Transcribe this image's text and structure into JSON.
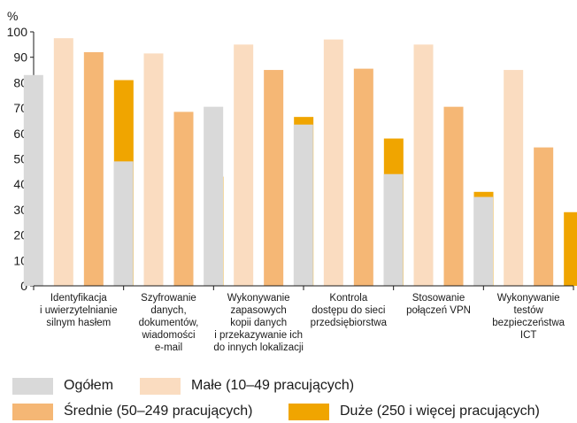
{
  "chart_data": {
    "type": "bar",
    "ylabel": "%",
    "ylim": [
      0,
      100
    ],
    "yticks": [
      0,
      10,
      20,
      30,
      40,
      50,
      60,
      70,
      80,
      90,
      100
    ],
    "grid": false,
    "legend_position": "bottom",
    "categories": [
      [
        "Identyfikacja",
        "i uwierzytelnianie",
        "silnym hasłem"
      ],
      [
        "Szyfrowanie",
        "danych,",
        "dokumentów,",
        "wiadomości",
        "e-mail"
      ],
      [
        "Wykonywanie",
        "zapasowych",
        "kopii danych",
        "i przekazywanie ich",
        "do innych lokalizacji"
      ],
      [
        "Kontrola",
        "dostępu do sieci",
        "przedsiębiorstwa"
      ],
      [
        "Stosowanie",
        "połączeń VPN"
      ],
      [
        "Wykonywanie",
        "testów",
        "bezpieczeństwa",
        "ICT"
      ]
    ],
    "series": [
      {
        "name": "Ogółem",
        "color": "#d9d9d9",
        "values": [
          83,
          49,
          70.5,
          63.5,
          44,
          35
        ]
      },
      {
        "name": "Małe (10–49 pracujących)",
        "color": "#fadcc0",
        "values": [
          97.5,
          91.5,
          95,
          97,
          95,
          85
        ]
      },
      {
        "name": "Średnie (50–249 pracujących)",
        "color": "#f5b775",
        "values": [
          92,
          68.5,
          85,
          85.5,
          70.5,
          54.5
        ]
      },
      {
        "name": "Duże (250 i więcej pracujących)",
        "color": "#f0a500",
        "values": [
          81,
          43,
          66.5,
          58,
          37,
          29
        ]
      }
    ]
  },
  "legend": [
    {
      "label": "Ogółem",
      "color": "#d9d9d9"
    },
    {
      "label": "Małe (10–49 pracujących)",
      "color": "#fadcc0"
    },
    {
      "label": "Średnie (50–249 pracujących)",
      "color": "#f5b775"
    },
    {
      "label": "Duże (250 i więcej pracujących)",
      "color": "#f0a500"
    }
  ]
}
